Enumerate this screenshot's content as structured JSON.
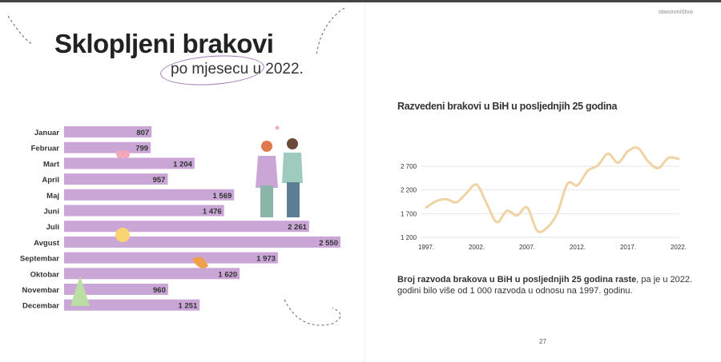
{
  "header": {
    "section": "stanovništvo",
    "page_number": "27"
  },
  "left": {
    "title": "Sklopljeni brakovi",
    "subtitle": "po mjesecu u 2022."
  },
  "right": {
    "note_bold": "Broj razvoda brakova u BiH u posljednjih 25 godina raste",
    "note_rest": ", pa je u 2022. godini bilo više od 1 000 razvoda u odnosu na 1997. godinu."
  },
  "colors": {
    "bar": "#c9a6d6",
    "line": "#f0d3a4",
    "grid": "#e6e6e6"
  },
  "chart_data": [
    {
      "type": "bar",
      "orientation": "horizontal",
      "categories": [
        "Januar",
        "Februar",
        "Mart",
        "April",
        "Maj",
        "Juni",
        "Juli",
        "Avgust",
        "Septembar",
        "Oktobar",
        "Novembar",
        "Decembar"
      ],
      "values": [
        807,
        799,
        1204,
        957,
        1569,
        1476,
        2261,
        2550,
        1973,
        1620,
        960,
        1251
      ],
      "labels": [
        "807",
        "799",
        "1 204",
        "957",
        "1 569",
        "1 476",
        "2 261",
        "2 550",
        "1 973",
        "1 620",
        "960",
        "1 251"
      ]
    },
    {
      "type": "line",
      "title": "Razvedeni brakovi u BiH u posljednjih 25 godina",
      "x": [
        1997,
        1998,
        1999,
        2000,
        2001,
        2002,
        2003,
        2004,
        2005,
        2006,
        2007,
        2008,
        2009,
        2010,
        2011,
        2012,
        2013,
        2014,
        2015,
        2016,
        2017,
        2018,
        2019,
        2020,
        2021,
        2022
      ],
      "values": [
        1830,
        1965,
        2005,
        1940,
        2135,
        2310,
        1910,
        1520,
        1760,
        1660,
        1830,
        1340,
        1410,
        1715,
        2330,
        2300,
        2605,
        2715,
        2965,
        2775,
        3020,
        3080,
        2800,
        2660,
        2875,
        2855
      ],
      "xticks": [
        "1997.",
        "2002.",
        "2007.",
        "2012.",
        "2017.",
        "2022."
      ],
      "yticks": [
        "1 200",
        "1 700",
        "2 200",
        "2 700"
      ],
      "ylim": [
        1200,
        3150
      ],
      "grid": true
    }
  ]
}
